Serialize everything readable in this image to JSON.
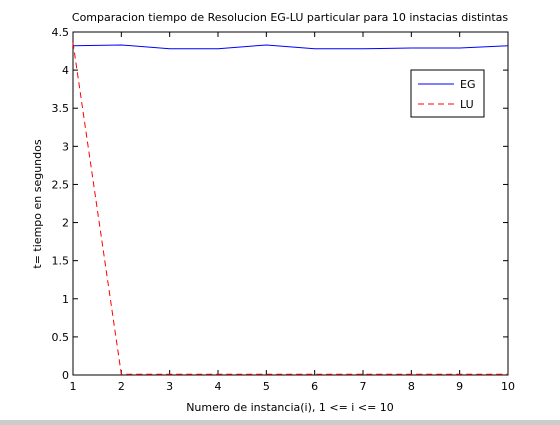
{
  "chart_data": {
    "type": "line",
    "title": "Comparacion tiempo de Resolucion EG-LU particular para 10 instacias distintas",
    "xlabel": "Numero de instancia(i), 1 <= i <= 10",
    "ylabel": "t= tiempo en segundos",
    "xlim": [
      1,
      10
    ],
    "ylim": [
      0,
      4.5
    ],
    "x_ticks": [
      "1",
      "2",
      "3",
      "4",
      "5",
      "6",
      "7",
      "8",
      "9",
      "10"
    ],
    "y_ticks": [
      "0",
      "0.5",
      "1",
      "1.5",
      "2",
      "2.5",
      "3",
      "3.5",
      "4",
      "4.5"
    ],
    "x": [
      1,
      2,
      3,
      4,
      5,
      6,
      7,
      8,
      9,
      10
    ],
    "series": [
      {
        "name": "EG",
        "color": "#0000ff",
        "style": "solid",
        "values": [
          4.32,
          4.33,
          4.28,
          4.28,
          4.33,
          4.28,
          4.28,
          4.29,
          4.29,
          4.32
        ]
      },
      {
        "name": "LU",
        "color": "#ff0000",
        "style": "dashed",
        "values": [
          4.36,
          0.01,
          0.01,
          0.01,
          0.01,
          0.01,
          0.01,
          0.01,
          0.01,
          0.01
        ]
      }
    ],
    "legend": "top-right",
    "grid": false
  }
}
